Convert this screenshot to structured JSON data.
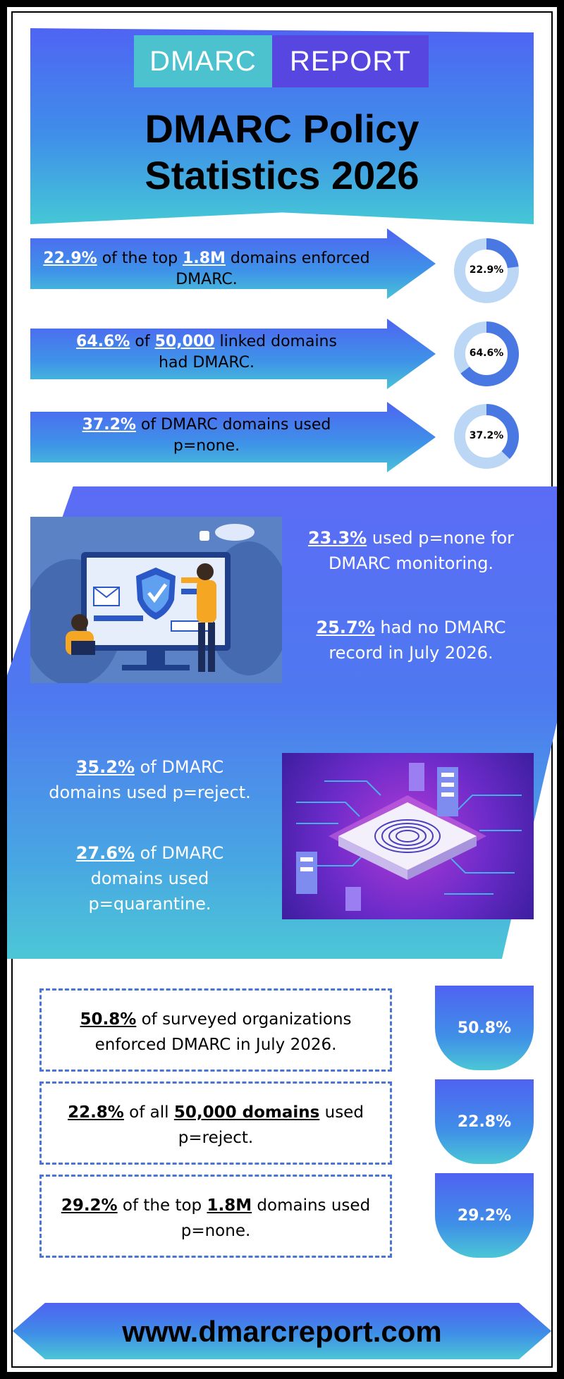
{
  "logo": {
    "left": "DMARC",
    "right": "REPORT"
  },
  "title": {
    "line1": "DMARC Policy",
    "line2": "Statistics 2026"
  },
  "arrows": [
    {
      "pct": "22.9%",
      "pre": "of the top",
      "num": "1.8M",
      "post": "domains enforced",
      "line2": "DMARC.",
      "donut_label": "22.9%",
      "donut_value": 22.9
    },
    {
      "pct": "64.6%",
      "pre": "of",
      "num": "50,000",
      "post": "linked domains",
      "line2": "had DMARC.",
      "donut_label": "64.6%",
      "donut_value": 64.6
    },
    {
      "pct": "37.2%",
      "pre": "of DMARC domains used",
      "line2": "p=none.",
      "donut_label": "37.2%",
      "donut_value": 37.2
    }
  ],
  "band": {
    "s1": {
      "pct": "23.3%",
      "l1": "used p=none for",
      "l2": "DMARC monitoring."
    },
    "s2": {
      "pct": "25.7%",
      "l1": "had no DMARC",
      "l2": "record in July 2026."
    },
    "s3": {
      "pct": "35.2%",
      "l1": "of DMARC",
      "l2": "domains used p=reject."
    },
    "s4": {
      "pct": "27.6%",
      "l1": "of DMARC",
      "l2": "domains used",
      "l3": "p=quarantine."
    }
  },
  "boxes": [
    {
      "pct": "50.8%",
      "l1": "of surveyed organizations",
      "l2": "enforced DMARC in July 2026.",
      "tag": "50.8%"
    },
    {
      "pct": "22.8%",
      "l1a": "of all",
      "bold": "50,000 domains",
      "l1b": "used",
      "l2": "p=reject.",
      "tag": "22.8%"
    },
    {
      "pct": "29.2%",
      "l1a": "of the top",
      "bold": "1.8M",
      "l1b": "domains used",
      "l2": "p=none.",
      "tag": "29.2%"
    }
  ],
  "footer": {
    "url": "www.dmarcreport.com"
  },
  "colors": {
    "primary": "#4f64f3",
    "teal": "#4cc2cf",
    "purple": "#5746df",
    "donut_ring": "#bcd7f5",
    "donut_fill": "#4a78e3"
  }
}
